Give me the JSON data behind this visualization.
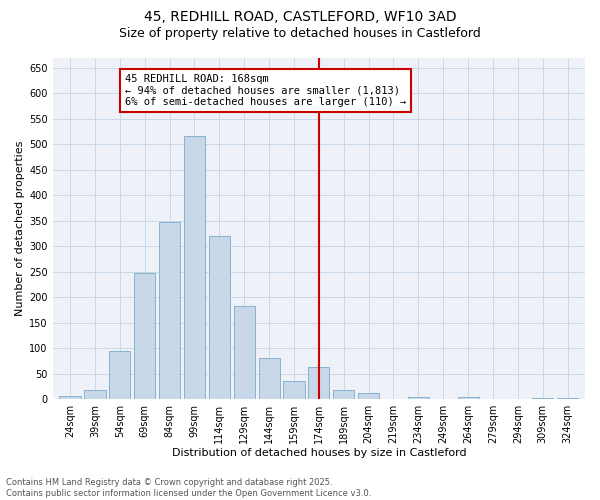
{
  "title_line1": "45, REDHILL ROAD, CASTLEFORD, WF10 3AD",
  "title_line2": "Size of property relative to detached houses in Castleford",
  "xlabel": "Distribution of detached houses by size in Castleford",
  "ylabel": "Number of detached properties",
  "categories": [
    "24sqm",
    "39sqm",
    "54sqm",
    "69sqm",
    "84sqm",
    "99sqm",
    "114sqm",
    "129sqm",
    "144sqm",
    "159sqm",
    "174sqm",
    "189sqm",
    "204sqm",
    "219sqm",
    "234sqm",
    "249sqm",
    "264sqm",
    "279sqm",
    "294sqm",
    "309sqm",
    "324sqm"
  ],
  "values": [
    6,
    18,
    95,
    248,
    347,
    517,
    320,
    183,
    80,
    35,
    63,
    18,
    11,
    0,
    5,
    0,
    5,
    0,
    0,
    3,
    2
  ],
  "bar_color": "#c8d8e8",
  "bar_edge_color": "#7aaac8",
  "vline_color": "#cc0000",
  "annotation_title": "45 REDHILL ROAD: 168sqm",
  "annotation_line2": "← 94% of detached houses are smaller (1,813)",
  "annotation_line3": "6% of semi-detached houses are larger (110) →",
  "annotation_box_color": "#cc0000",
  "annotation_bg": "#ffffff",
  "ylim": [
    0,
    670
  ],
  "yticks": [
    0,
    50,
    100,
    150,
    200,
    250,
    300,
    350,
    400,
    450,
    500,
    550,
    600,
    650
  ],
  "grid_color": "#c8d8e8",
  "bg_color": "#eef2f8",
  "footer_line1": "Contains HM Land Registry data © Crown copyright and database right 2025.",
  "footer_line2": "Contains public sector information licensed under the Open Government Licence v3.0.",
  "title_fontsize": 10,
  "subtitle_fontsize": 9,
  "axis_label_fontsize": 8,
  "tick_fontsize": 7,
  "footer_fontsize": 6,
  "ann_fontsize": 7.5
}
